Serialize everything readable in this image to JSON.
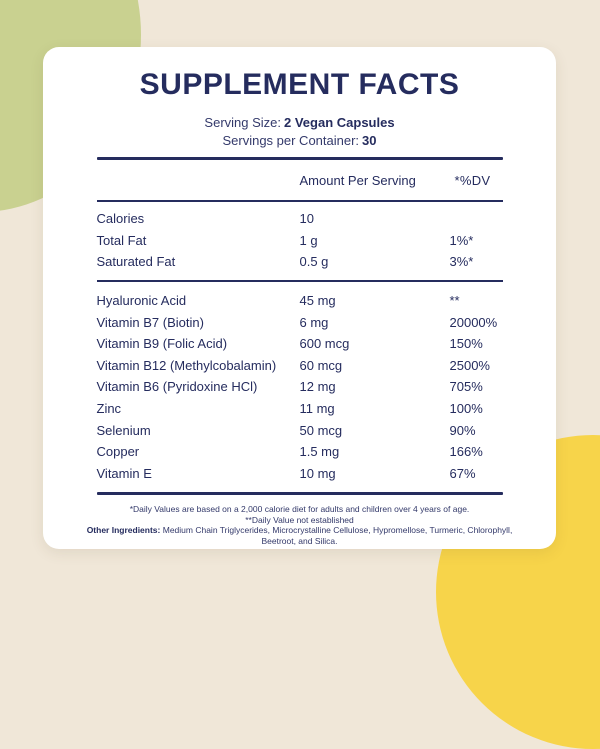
{
  "colors": {
    "background": "#f0e7d8",
    "green_blob": "#c9d190",
    "yellow_blob": "#f7d44a",
    "navy": "#252c5e",
    "card": "#ffffff"
  },
  "label": {
    "title": "SUPPLEMENT FACTS",
    "serving_size_label": "Serving Size:",
    "serving_size_value": "2 Vegan Capsules",
    "servings_label": "Servings per Container:",
    "servings_value": "30",
    "columns": {
      "amount": "Amount Per Serving",
      "dv": "*%DV"
    },
    "sections": [
      {
        "rows": [
          {
            "name": "Calories",
            "amount": "10",
            "dv": ""
          },
          {
            "name": "Total Fat",
            "amount": "1 g",
            "dv": "1%*"
          },
          {
            "name": "Saturated Fat",
            "amount": "0.5 g",
            "dv": "3%*"
          }
        ]
      },
      {
        "rows": [
          {
            "name": "Hyaluronic Acid",
            "amount": "45 mg",
            "dv": "**"
          },
          {
            "name": "Vitamin B7 (Biotin)",
            "amount": "6 mg",
            "dv": "20000%"
          },
          {
            "name": "Vitamin B9 (Folic Acid)",
            "amount": "600 mcg",
            "dv": "150%"
          },
          {
            "name": "Vitamin B12 (Methylcobalamin)",
            "amount": "60 mcg",
            "dv": "2500%"
          },
          {
            "name": "Vitamin B6 (Pyridoxine HCl)",
            "amount": "12 mg",
            "dv": "705%"
          },
          {
            "name": "Zinc",
            "amount": "11 mg",
            "dv": "100%"
          },
          {
            "name": "Selenium",
            "amount": "50 mcg",
            "dv": "90%"
          },
          {
            "name": "Copper",
            "amount": "1.5 mg",
            "dv": "166%"
          },
          {
            "name": "Vitamin E",
            "amount": "10 mg",
            "dv": "67%"
          }
        ]
      }
    ],
    "footnotes": [
      "*Daily Values are based on a 2,000 calorie diet for adults and children over 4 years of age.",
      "**Daily Value not established"
    ],
    "other_ingredients_label": "Other Ingredients:",
    "other_ingredients_text": "Medium Chain Triglycerides, Microcrystalline Cellulose, Hypromellose, Turmeric, Chlorophyll, Beetroot, and Silica."
  }
}
